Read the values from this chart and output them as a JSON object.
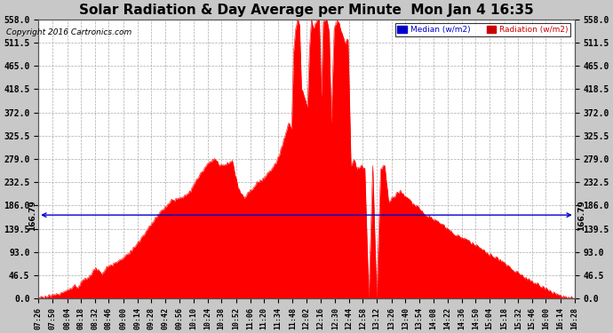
{
  "title": "Solar Radiation & Day Average per Minute  Mon Jan 4 16:35",
  "copyright": "Copyright 2016 Cartronics.com",
  "median_value": 166.79,
  "y_ticks": [
    0.0,
    46.5,
    93.0,
    139.5,
    186.0,
    232.5,
    279.0,
    325.5,
    372.0,
    418.5,
    465.0,
    511.5,
    558.0
  ],
  "y_max": 558.0,
  "background_color": "#c8c8c8",
  "plot_bg_color": "#ffffff",
  "fill_color": "#ff0000",
  "median_color": "#0000cc",
  "title_fontsize": 11,
  "legend_median_color": "#0000cc",
  "legend_radiation_color": "#cc0000",
  "x_labels": [
    "07:26",
    "07:50",
    "08:04",
    "08:18",
    "08:32",
    "08:46",
    "09:00",
    "09:14",
    "09:28",
    "09:42",
    "09:56",
    "10:10",
    "10:24",
    "10:38",
    "10:52",
    "11:06",
    "11:20",
    "11:34",
    "11:48",
    "12:02",
    "12:16",
    "12:30",
    "12:44",
    "12:58",
    "13:12",
    "13:26",
    "13:40",
    "13:54",
    "14:08",
    "14:22",
    "14:36",
    "14:50",
    "15:04",
    "15:18",
    "15:32",
    "15:46",
    "16:00",
    "16:14",
    "16:28"
  ]
}
